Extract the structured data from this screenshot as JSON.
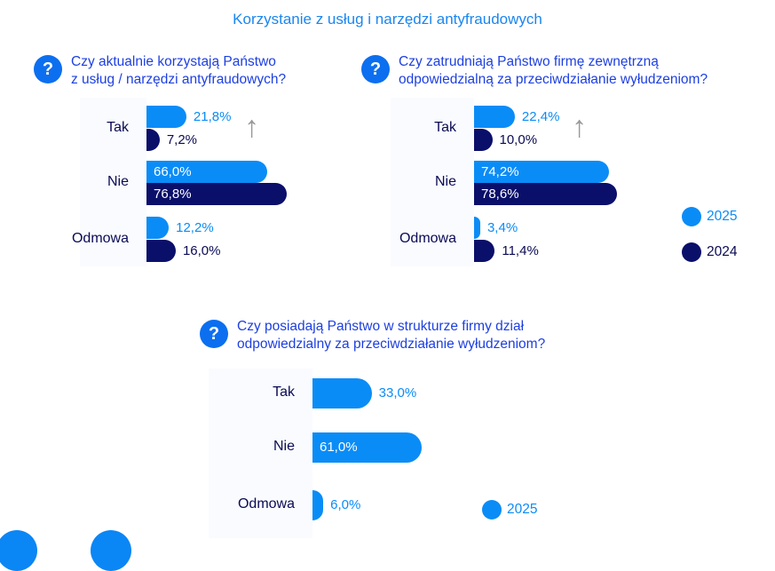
{
  "title": "Korzystanie z usług i narzędzi antyfraudowych",
  "colors": {
    "y2025": "#0a8cf7",
    "y2024": "#0a0f6a"
  },
  "legend": {
    "y2025": "2025",
    "y2024": "2024"
  },
  "chart_data": [
    {
      "type": "bar",
      "title": "Czy aktualnie korzystają Państwo z usług / narzędzi antyfraudowych?",
      "categories": [
        "Tak",
        "Nie",
        "Odmowa"
      ],
      "series": [
        {
          "name": "2025",
          "values": [
            21.8,
            66.0,
            12.2
          ],
          "labels": [
            "21,8%",
            "66,0%",
            "12,2%"
          ]
        },
        {
          "name": "2024",
          "values": [
            7.2,
            76.8,
            16.0
          ],
          "labels": [
            "7,2%",
            "76,8%",
            "16,0%"
          ]
        }
      ]
    },
    {
      "type": "bar",
      "title": "Czy zatrudniają Państwo firmę zewnętrzną odpowiedzialną za przeciwdziałanie wyłudzeniom?",
      "categories": [
        "Tak",
        "Nie",
        "Odmowa"
      ],
      "series": [
        {
          "name": "2025",
          "values": [
            22.4,
            74.2,
            3.4
          ],
          "labels": [
            "22,4%",
            "74,2%",
            "3,4%"
          ]
        },
        {
          "name": "2024",
          "values": [
            10.0,
            78.6,
            11.4
          ],
          "labels": [
            "10,0%",
            "78,6%",
            "11,4%"
          ]
        }
      ]
    },
    {
      "type": "bar",
      "title": "Czy posiadają Państwo w strukturze firmy dział odpowiedzialny za przeciwdziałanie wyłudzeniom?",
      "categories": [
        "Tak",
        "Nie",
        "Odmowa"
      ],
      "series": [
        {
          "name": "2025",
          "values": [
            33.0,
            61.0,
            6.0
          ],
          "labels": [
            "33,0%",
            "61,0%",
            "6,0%"
          ]
        }
      ]
    }
  ],
  "questions": {
    "q1": [
      "Czy aktualnie korzystają Państwo",
      "z usług / narzędzi antyfraudowych?"
    ],
    "q2": [
      "Czy zatrudniają Państwo firmę zewnętrzną",
      "odpowiedzialną za przeciwdziałanie wyłudzeniom?"
    ],
    "q3": [
      "Czy posiadają Państwo w strukturze firmy dział",
      "odpowiedzialny za przeciwdziałanie wyłudzeniom?"
    ],
    "icon": "?"
  },
  "arrow": "↑"
}
